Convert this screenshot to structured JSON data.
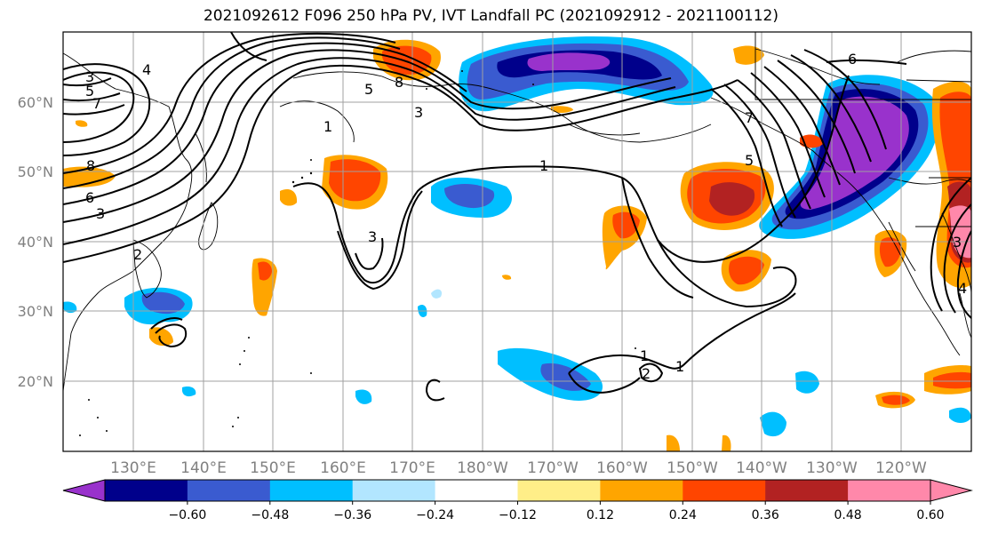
{
  "title": "2021092612 F096 250 hPa PV, IVT Landfall PC (2021092912 - 2021100112)",
  "lat_labels": [
    "60°N",
    "50°N",
    "40°N",
    "30°N",
    "20°N"
  ],
  "lon_labels": [
    "130°E",
    "140°E",
    "150°E",
    "160°E",
    "170°E",
    "180°W",
    "170°W",
    "160°W",
    "150°W",
    "140°W",
    "130°W",
    "120°W"
  ],
  "contour_labels": [
    "3",
    "4",
    "5",
    "7",
    "8",
    "6",
    "3",
    "2",
    "1",
    "8",
    "5",
    "3",
    "1",
    "3",
    "6",
    "7",
    "5",
    "1",
    "2",
    "1",
    "3",
    "4"
  ],
  "colorbar": {
    "ticks": [
      "−0.60",
      "−0.48",
      "−0.36",
      "−0.24",
      "−0.12",
      "0.12",
      "0.24",
      "0.36",
      "0.48",
      "0.60"
    ],
    "colors": [
      "#9932cc",
      "#00008b",
      "#3a5bd0",
      "#00bfff",
      "#b2e6ff",
      "#ffffff",
      "#ffee88",
      "#ffa500",
      "#ff4500",
      "#b22222",
      "#ff88aa",
      "#ff88aa"
    ]
  },
  "map": {
    "lon_range": [
      "120°E",
      "110°W"
    ],
    "lat_range": [
      "10°N",
      "70°N"
    ],
    "projection": "PlateCarree"
  }
}
